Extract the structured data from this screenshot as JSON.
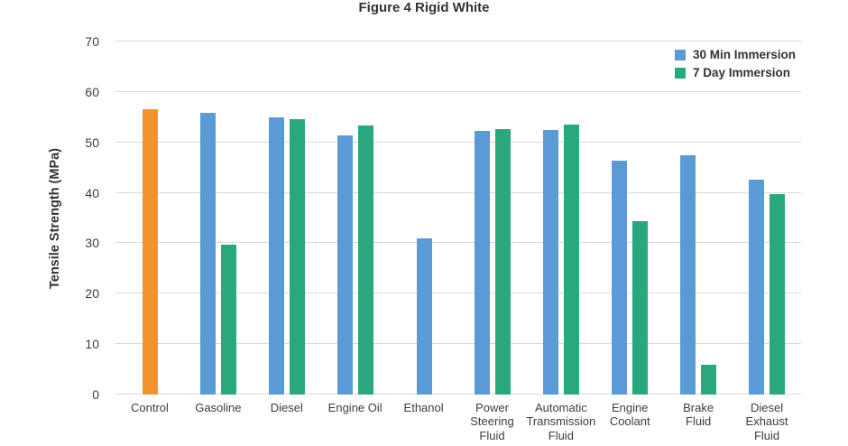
{
  "colors": {
    "control": "#f0942d",
    "immersion_30min": "#5b9bd5",
    "immersion_7day": "#29a87e",
    "gridline": "#d9d9d9",
    "text": "#3d3d3d"
  },
  "chart_data": {
    "type": "bar",
    "title": "Figure 4 Rigid White",
    "xlabel": "",
    "ylabel": "Tensile Strength (MPa)",
    "ylim": [
      0,
      70
    ],
    "yticks": [
      0,
      10,
      20,
      30,
      40,
      50,
      60,
      70
    ],
    "grid": true,
    "legend": {
      "position": "top-right",
      "entries": [
        {
          "label": "30 Min Immersion",
          "color_key": "immersion_30min"
        },
        {
          "label": "7 Day Immersion",
          "color_key": "immersion_7day"
        }
      ]
    },
    "groups": [
      {
        "label_lines": [
          "Control"
        ],
        "bars": [
          {
            "series": "Control",
            "value": 56.5,
            "color_key": "control"
          }
        ]
      },
      {
        "label_lines": [
          "Gasoline"
        ],
        "bars": [
          {
            "series": "30 Min Immersion",
            "value": 55.8,
            "color_key": "immersion_30min"
          },
          {
            "series": "7 Day Immersion",
            "value": 29.7,
            "color_key": "immersion_7day"
          }
        ]
      },
      {
        "label_lines": [
          "Diesel"
        ],
        "bars": [
          {
            "series": "30 Min Immersion",
            "value": 55.0,
            "color_key": "immersion_30min"
          },
          {
            "series": "7 Day Immersion",
            "value": 54.6,
            "color_key": "immersion_7day"
          }
        ]
      },
      {
        "label_lines": [
          "Engine Oil"
        ],
        "bars": [
          {
            "series": "30 Min Immersion",
            "value": 51.3,
            "color_key": "immersion_30min"
          },
          {
            "series": "7 Day Immersion",
            "value": 53.4,
            "color_key": "immersion_7day"
          }
        ]
      },
      {
        "label_lines": [
          "Ethanol"
        ],
        "bars": [
          {
            "series": "30 Min Immersion",
            "value": 30.9,
            "color_key": "immersion_30min"
          }
        ]
      },
      {
        "label_lines": [
          "Power",
          "Steering",
          "Fluid"
        ],
        "bars": [
          {
            "series": "30 Min Immersion",
            "value": 52.2,
            "color_key": "immersion_30min"
          },
          {
            "series": "7 Day Immersion",
            "value": 52.7,
            "color_key": "immersion_7day"
          }
        ]
      },
      {
        "label_lines": [
          "Automatic",
          "Transmission",
          "Fluid"
        ],
        "bars": [
          {
            "series": "30 Min Immersion",
            "value": 52.4,
            "color_key": "immersion_30min"
          },
          {
            "series": "7 Day Immersion",
            "value": 53.6,
            "color_key": "immersion_7day"
          }
        ]
      },
      {
        "label_lines": [
          "Engine",
          "Coolant"
        ],
        "bars": [
          {
            "series": "30 Min Immersion",
            "value": 46.3,
            "color_key": "immersion_30min"
          },
          {
            "series": "7 Day Immersion",
            "value": 34.3,
            "color_key": "immersion_7day"
          }
        ]
      },
      {
        "label_lines": [
          "Brake",
          "Fluid"
        ],
        "bars": [
          {
            "series": "30 Min Immersion",
            "value": 47.5,
            "color_key": "immersion_30min"
          },
          {
            "series": "7 Day Immersion",
            "value": 6.0,
            "color_key": "immersion_7day"
          }
        ]
      },
      {
        "label_lines": [
          "Diesel",
          "Exhaust",
          "Fluid"
        ],
        "bars": [
          {
            "series": "30 Min Immersion",
            "value": 42.6,
            "color_key": "immersion_30min"
          },
          {
            "series": "7 Day Immersion",
            "value": 39.8,
            "color_key": "immersion_7day"
          }
        ]
      }
    ]
  }
}
